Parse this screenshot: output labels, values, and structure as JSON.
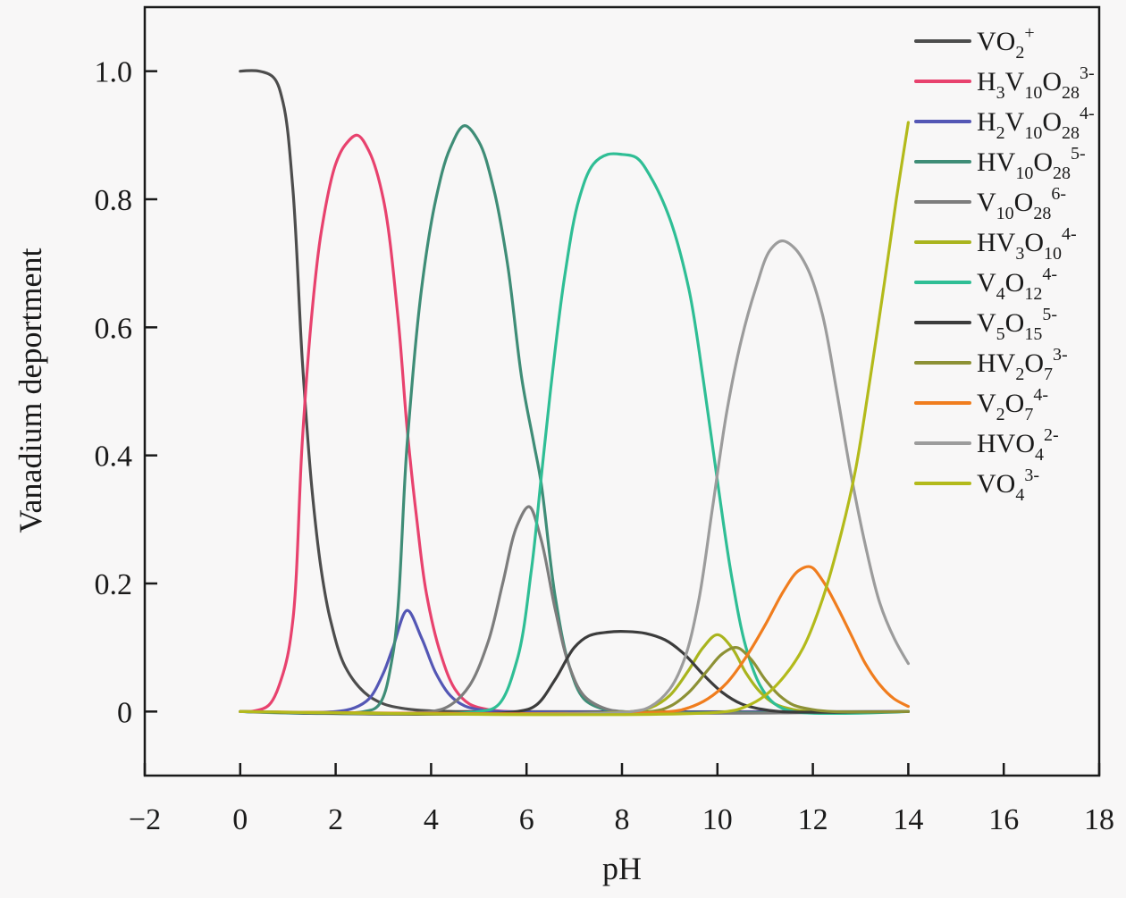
{
  "figure": {
    "background": "#f8f7f7",
    "frame_color": "#1a1a1a",
    "tick_color": "#1a1a1a"
  },
  "chart_data": {
    "type": "line",
    "title": "",
    "xlabel": "pH",
    "ylabel": "Vanadium deportment",
    "xlim": [
      -2,
      18
    ],
    "ylim": [
      -0.1,
      1.1
    ],
    "xticks": [
      "−2",
      "0",
      "2",
      "4",
      "6",
      "8",
      "10",
      "12",
      "14",
      "16",
      "18"
    ],
    "xtick_values": [
      -2,
      0,
      2,
      4,
      6,
      8,
      10,
      12,
      14,
      16,
      18
    ],
    "yticks": [
      "0",
      "0.2",
      "0.4",
      "0.6",
      "0.8",
      "1.0"
    ],
    "ytick_values": [
      0,
      0.2,
      0.4,
      0.6,
      0.8,
      1.0
    ],
    "grid": false,
    "legend_position": "upper-right",
    "series": [
      {
        "name": "VO2+",
        "tokens": [
          [
            "VO",
            ""
          ],
          [
            "2",
            "sub"
          ],
          [
            "+",
            "sup"
          ]
        ],
        "color": "#4d4d4d",
        "points": [
          [
            0,
            1.0
          ],
          [
            0.4,
            1.0
          ],
          [
            0.7,
            0.99
          ],
          [
            0.9,
            0.95
          ],
          [
            1.1,
            0.82
          ],
          [
            1.3,
            0.55
          ],
          [
            1.5,
            0.35
          ],
          [
            1.7,
            0.22
          ],
          [
            1.9,
            0.14
          ],
          [
            2.2,
            0.07
          ],
          [
            2.6,
            0.03
          ],
          [
            3.0,
            0.012
          ],
          [
            3.5,
            0.004
          ],
          [
            4.0,
            0.001
          ],
          [
            4.5,
            0
          ],
          [
            14,
            0
          ]
        ]
      },
      {
        "name": "H3V10O28 3-",
        "tokens": [
          [
            "H",
            ""
          ],
          [
            "3",
            "sub"
          ],
          [
            "V",
            ""
          ],
          [
            "10",
            "sub"
          ],
          [
            "O",
            ""
          ],
          [
            "28",
            "sub"
          ],
          [
            "3-",
            "sup"
          ]
        ],
        "color": "#e8426e",
        "points": [
          [
            0,
            0
          ],
          [
            0.3,
            0.001
          ],
          [
            0.6,
            0.01
          ],
          [
            0.9,
            0.06
          ],
          [
            1.1,
            0.14
          ],
          [
            1.3,
            0.42
          ],
          [
            1.5,
            0.62
          ],
          [
            1.7,
            0.75
          ],
          [
            2.0,
            0.855
          ],
          [
            2.2,
            0.885
          ],
          [
            2.45,
            0.9
          ],
          [
            2.7,
            0.875
          ],
          [
            3.0,
            0.8
          ],
          [
            3.3,
            0.62
          ],
          [
            3.5,
            0.44
          ],
          [
            3.7,
            0.3
          ],
          [
            3.9,
            0.185
          ],
          [
            4.2,
            0.09
          ],
          [
            4.5,
            0.035
          ],
          [
            4.8,
            0.012
          ],
          [
            5.2,
            0.003
          ],
          [
            5.6,
            0
          ],
          [
            14,
            0
          ]
        ]
      },
      {
        "name": "H2V10O28 4-",
        "tokens": [
          [
            "H",
            ""
          ],
          [
            "2",
            "sub"
          ],
          [
            "V",
            ""
          ],
          [
            "10",
            "sub"
          ],
          [
            "O",
            ""
          ],
          [
            "28",
            "sub"
          ],
          [
            "4-",
            "sup"
          ]
        ],
        "color": "#5457b5",
        "points": [
          [
            0,
            0
          ],
          [
            2.0,
            0
          ],
          [
            2.4,
            0.006
          ],
          [
            2.7,
            0.02
          ],
          [
            3.0,
            0.06
          ],
          [
            3.2,
            0.1
          ],
          [
            3.5,
            0.158
          ],
          [
            3.8,
            0.115
          ],
          [
            4.1,
            0.06
          ],
          [
            4.4,
            0.025
          ],
          [
            4.7,
            0.009
          ],
          [
            5.1,
            0.002
          ],
          [
            5.5,
            0
          ],
          [
            14,
            0
          ]
        ]
      },
      {
        "name": "HV10O28 5-",
        "tokens": [
          [
            "HV",
            ""
          ],
          [
            "10",
            "sub"
          ],
          [
            "O",
            ""
          ],
          [
            "28",
            "sub"
          ],
          [
            "5-",
            "sup"
          ]
        ],
        "color": "#3f8d77",
        "points": [
          [
            0,
            0
          ],
          [
            2.6,
            0
          ],
          [
            2.9,
            0.01
          ],
          [
            3.2,
            0.09
          ],
          [
            3.5,
            0.42
          ],
          [
            3.8,
            0.66
          ],
          [
            4.1,
            0.8
          ],
          [
            4.4,
            0.88
          ],
          [
            4.7,
            0.915
          ],
          [
            5.0,
            0.89
          ],
          [
            5.3,
            0.82
          ],
          [
            5.6,
            0.7
          ],
          [
            5.9,
            0.52
          ],
          [
            6.15,
            0.42
          ],
          [
            6.3,
            0.36
          ],
          [
            6.6,
            0.18
          ],
          [
            6.9,
            0.07
          ],
          [
            7.2,
            0.02
          ],
          [
            7.6,
            0.004
          ],
          [
            8.0,
            0
          ],
          [
            14,
            0
          ]
        ]
      },
      {
        "name": "V10O28 6-",
        "tokens": [
          [
            "V",
            ""
          ],
          [
            "10",
            "sub"
          ],
          [
            "O",
            ""
          ],
          [
            "28",
            "sub"
          ],
          [
            "6-",
            "sup"
          ]
        ],
        "color": "#7d7d7d",
        "points": [
          [
            0,
            0
          ],
          [
            4.0,
            0
          ],
          [
            4.4,
            0.01
          ],
          [
            4.8,
            0.04
          ],
          [
            5.2,
            0.11
          ],
          [
            5.5,
            0.2
          ],
          [
            5.8,
            0.29
          ],
          [
            6.05,
            0.32
          ],
          [
            6.3,
            0.27
          ],
          [
            6.6,
            0.16
          ],
          [
            6.9,
            0.07
          ],
          [
            7.2,
            0.025
          ],
          [
            7.6,
            0.006
          ],
          [
            8.0,
            0
          ],
          [
            14,
            0
          ]
        ]
      },
      {
        "name": "HV3O10 4-",
        "tokens": [
          [
            "HV",
            ""
          ],
          [
            "3",
            "sub"
          ],
          [
            "O",
            ""
          ],
          [
            "10",
            "sub"
          ],
          [
            "4-",
            "sup"
          ]
        ],
        "color": "#a9b41e",
        "points": [
          [
            0,
            0
          ],
          [
            8.2,
            0
          ],
          [
            8.6,
            0.006
          ],
          [
            9.0,
            0.025
          ],
          [
            9.4,
            0.065
          ],
          [
            9.7,
            0.1
          ],
          [
            10.0,
            0.12
          ],
          [
            10.3,
            0.1
          ],
          [
            10.6,
            0.06
          ],
          [
            10.9,
            0.03
          ],
          [
            11.2,
            0.012
          ],
          [
            11.6,
            0.003
          ],
          [
            12.0,
            0
          ],
          [
            14,
            0
          ]
        ]
      },
      {
        "name": "V4O12 4-",
        "tokens": [
          [
            "V",
            ""
          ],
          [
            "4",
            "sub"
          ],
          [
            "O",
            ""
          ],
          [
            "12",
            "sub"
          ],
          [
            "4-",
            "sup"
          ]
        ],
        "color": "#2fbe95",
        "points": [
          [
            0,
            0
          ],
          [
            5.0,
            0
          ],
          [
            5.4,
            0.01
          ],
          [
            5.8,
            0.08
          ],
          [
            6.1,
            0.22
          ],
          [
            6.3,
            0.36
          ],
          [
            6.5,
            0.5
          ],
          [
            6.8,
            0.68
          ],
          [
            7.1,
            0.8
          ],
          [
            7.4,
            0.855
          ],
          [
            7.7,
            0.87
          ],
          [
            8.0,
            0.87
          ],
          [
            8.3,
            0.865
          ],
          [
            8.6,
            0.835
          ],
          [
            9.0,
            0.77
          ],
          [
            9.4,
            0.66
          ],
          [
            9.7,
            0.52
          ],
          [
            10.0,
            0.36
          ],
          [
            10.3,
            0.21
          ],
          [
            10.6,
            0.1
          ],
          [
            10.9,
            0.04
          ],
          [
            11.2,
            0.012
          ],
          [
            11.6,
            0
          ],
          [
            14,
            0
          ]
        ]
      },
      {
        "name": "V5O15 5-",
        "tokens": [
          [
            "V",
            ""
          ],
          [
            "5",
            "sub"
          ],
          [
            "O",
            ""
          ],
          [
            "15",
            "sub"
          ],
          [
            "5-",
            "sup"
          ]
        ],
        "color": "#3c3c3c",
        "points": [
          [
            0,
            0
          ],
          [
            5.8,
            0
          ],
          [
            6.2,
            0.01
          ],
          [
            6.6,
            0.05
          ],
          [
            7.0,
            0.1
          ],
          [
            7.3,
            0.118
          ],
          [
            7.7,
            0.124
          ],
          [
            8.1,
            0.125
          ],
          [
            8.5,
            0.122
          ],
          [
            8.9,
            0.112
          ],
          [
            9.3,
            0.09
          ],
          [
            9.7,
            0.058
          ],
          [
            10.1,
            0.03
          ],
          [
            10.5,
            0.012
          ],
          [
            10.9,
            0.004
          ],
          [
            11.3,
            0
          ],
          [
            14,
            0
          ]
        ]
      },
      {
        "name": "HV2O7 3-",
        "tokens": [
          [
            "HV",
            ""
          ],
          [
            "2",
            "sub"
          ],
          [
            "O",
            ""
          ],
          [
            "7",
            "sub"
          ],
          [
            "3-",
            "sup"
          ]
        ],
        "color": "#8d9135",
        "points": [
          [
            0,
            0
          ],
          [
            8.6,
            0
          ],
          [
            9.0,
            0.008
          ],
          [
            9.4,
            0.03
          ],
          [
            9.8,
            0.065
          ],
          [
            10.1,
            0.09
          ],
          [
            10.4,
            0.1
          ],
          [
            10.7,
            0.082
          ],
          [
            11.0,
            0.05
          ],
          [
            11.3,
            0.025
          ],
          [
            11.6,
            0.01
          ],
          [
            12.0,
            0.003
          ],
          [
            12.4,
            0
          ],
          [
            14,
            0
          ]
        ]
      },
      {
        "name": "V2O7 4-",
        "tokens": [
          [
            "V",
            ""
          ],
          [
            "2",
            "sub"
          ],
          [
            "O",
            ""
          ],
          [
            "7",
            "sub"
          ],
          [
            "4-",
            "sup"
          ]
        ],
        "color": "#f07d1e",
        "points": [
          [
            0,
            0
          ],
          [
            9.0,
            0
          ],
          [
            9.4,
            0.006
          ],
          [
            9.8,
            0.02
          ],
          [
            10.2,
            0.045
          ],
          [
            10.6,
            0.085
          ],
          [
            11.0,
            0.135
          ],
          [
            11.4,
            0.19
          ],
          [
            11.7,
            0.22
          ],
          [
            11.95,
            0.226
          ],
          [
            12.2,
            0.205
          ],
          [
            12.5,
            0.165
          ],
          [
            12.8,
            0.12
          ],
          [
            13.1,
            0.075
          ],
          [
            13.4,
            0.042
          ],
          [
            13.7,
            0.02
          ],
          [
            14.0,
            0.008
          ]
        ]
      },
      {
        "name": "HVO4 2-",
        "tokens": [
          [
            "HVO",
            ""
          ],
          [
            "4",
            "sub"
          ],
          [
            "2-",
            "sup"
          ]
        ],
        "color": "#9c9c9c",
        "points": [
          [
            0,
            0
          ],
          [
            8.2,
            0
          ],
          [
            8.6,
            0.008
          ],
          [
            9.0,
            0.035
          ],
          [
            9.3,
            0.08
          ],
          [
            9.6,
            0.17
          ],
          [
            9.9,
            0.32
          ],
          [
            10.2,
            0.47
          ],
          [
            10.5,
            0.58
          ],
          [
            10.8,
            0.66
          ],
          [
            11.1,
            0.72
          ],
          [
            11.35,
            0.735
          ],
          [
            11.6,
            0.725
          ],
          [
            11.9,
            0.69
          ],
          [
            12.2,
            0.62
          ],
          [
            12.5,
            0.5
          ],
          [
            12.8,
            0.37
          ],
          [
            13.1,
            0.26
          ],
          [
            13.4,
            0.17
          ],
          [
            13.7,
            0.115
          ],
          [
            14.0,
            0.075
          ]
        ]
      },
      {
        "name": "VO4 3-",
        "tokens": [
          [
            "VO",
            ""
          ],
          [
            "4",
            "sub"
          ],
          [
            "3-",
            "sup"
          ]
        ],
        "color": "#b3ba1b",
        "points": [
          [
            0,
            0
          ],
          [
            10.2,
            0
          ],
          [
            10.6,
            0.008
          ],
          [
            11.0,
            0.025
          ],
          [
            11.4,
            0.055
          ],
          [
            11.8,
            0.1
          ],
          [
            12.2,
            0.175
          ],
          [
            12.6,
            0.28
          ],
          [
            12.9,
            0.38
          ],
          [
            13.2,
            0.52
          ],
          [
            13.5,
            0.67
          ],
          [
            13.75,
            0.8
          ],
          [
            14.0,
            0.92
          ]
        ]
      }
    ]
  }
}
